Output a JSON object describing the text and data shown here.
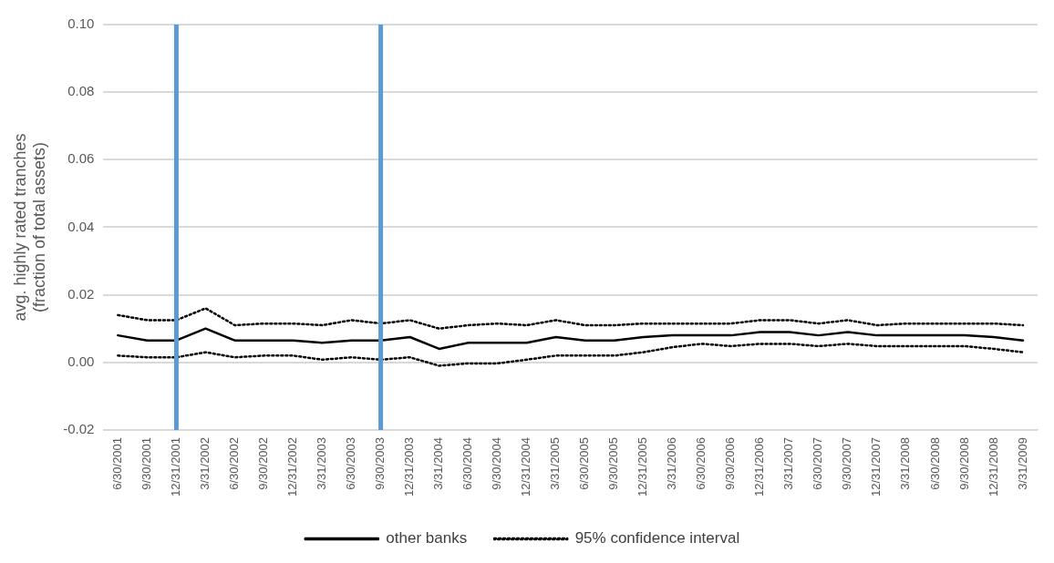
{
  "chart_data": {
    "type": "line",
    "ylabel": "avg. highly rated tranches\n(fraction of total assets)",
    "categories": [
      "6/30/2001",
      "9/30/2001",
      "12/31/2001",
      "3/31/2002",
      "6/30/2002",
      "9/30/2002",
      "12/31/2002",
      "3/31/2003",
      "6/30/2003",
      "9/30/2003",
      "12/31/2003",
      "3/31/2004",
      "6/30/2004",
      "9/30/2004",
      "12/31/2004",
      "3/31/2005",
      "6/30/2005",
      "9/30/2005",
      "12/31/2005",
      "3/31/2006",
      "6/30/2006",
      "9/30/2006",
      "12/31/2006",
      "3/31/2007",
      "6/30/2007",
      "9/30/2007",
      "12/31/2007",
      "3/31/2008",
      "6/30/2008",
      "9/30/2008",
      "12/31/2008",
      "3/31/2009"
    ],
    "series": [
      {
        "name": "other banks",
        "color": "#000000",
        "line_style": "solid",
        "values": [
          0.008,
          0.0065,
          0.0065,
          0.01,
          0.0065,
          0.0065,
          0.0065,
          0.0058,
          0.0065,
          0.0065,
          0.0075,
          0.004,
          0.0058,
          0.0058,
          0.0058,
          0.0075,
          0.0065,
          0.0065,
          0.0075,
          0.008,
          0.008,
          0.008,
          0.009,
          0.009,
          0.008,
          0.009,
          0.008,
          0.008,
          0.008,
          0.008,
          0.0075,
          0.0065
        ]
      },
      {
        "name": "95% confidence interval",
        "color": "#000000",
        "line_style": "dotted",
        "values": [
          0.014,
          0.0125,
          0.0125,
          0.016,
          0.011,
          0.0115,
          0.0115,
          0.011,
          0.0125,
          0.0115,
          0.0125,
          0.01,
          0.011,
          0.0115,
          0.011,
          0.0125,
          0.011,
          0.011,
          0.0115,
          0.0115,
          0.0115,
          0.0115,
          0.0125,
          0.0125,
          0.0115,
          0.0125,
          0.011,
          0.0115,
          0.0115,
          0.0115,
          0.0115,
          0.011
        ]
      },
      {
        "color": "#000000",
        "line_style": "dotted",
        "values": [
          0.002,
          0.0015,
          0.0015,
          0.003,
          0.0015,
          0.002,
          0.002,
          0.0008,
          0.0015,
          0.0008,
          0.0015,
          -0.001,
          -0.0003,
          -0.0003,
          0.0008,
          0.002,
          0.002,
          0.002,
          0.003,
          0.0045,
          0.0055,
          0.0048,
          0.0055,
          0.0055,
          0.0048,
          0.0055,
          0.0048,
          0.0048,
          0.0048,
          0.0048,
          0.004,
          0.003
        ]
      }
    ],
    "ylim": [
      -0.02,
      0.1
    ],
    "yticks": [
      {
        "value": -0.02,
        "label": "-0.02"
      },
      {
        "value": 0,
        "label": "0.00"
      },
      {
        "value": 0.02,
        "label": "0.02"
      },
      {
        "value": 0.04,
        "label": "0.04"
      },
      {
        "value": 0.06,
        "label": "0.06"
      },
      {
        "value": 0.08,
        "label": "0.08"
      },
      {
        "value": 0.1,
        "label": "0.10"
      }
    ],
    "ref_lines": [
      {
        "axis": "x",
        "value": "12/31/2001",
        "color": "#5b9bd5"
      },
      {
        "axis": "x",
        "value": "9/30/2003",
        "color": "#5b9bd5"
      }
    ],
    "grid": "y",
    "legend": "bottom",
    "marker": "none"
  }
}
